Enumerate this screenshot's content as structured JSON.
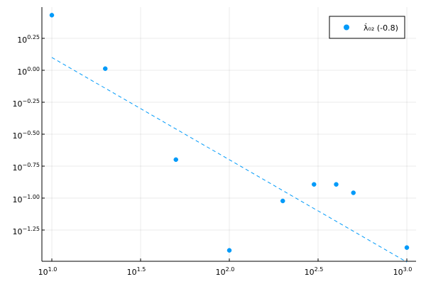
{
  "chart_data": {
    "type": "scatter",
    "xscale": "log10",
    "yscale": "log10",
    "xlim": [
      1,
      1000
    ],
    "ylim": [
      0.037,
      3.1
    ],
    "grid": true,
    "legend_position": "top-right",
    "x_ticks": [
      {
        "value": 10,
        "base": "10",
        "exp": "1.0"
      },
      {
        "value": 31.62,
        "base": "10",
        "exp": "1.5"
      },
      {
        "value": 100,
        "base": "10",
        "exp": "2.0"
      },
      {
        "value": 316.2,
        "base": "10",
        "exp": "2.5"
      },
      {
        "value": 1000,
        "base": "10",
        "exp": "3.0"
      }
    ],
    "y_ticks": [
      {
        "value": 1.778,
        "base": "10",
        "exp": "0.25"
      },
      {
        "value": 1.0,
        "base": "10",
        "exp": "0.00"
      },
      {
        "value": 0.5623,
        "base": "10",
        "exp": "−0.25"
      },
      {
        "value": 0.3162,
        "base": "10",
        "exp": "−0.50"
      },
      {
        "value": 0.1778,
        "base": "10",
        "exp": "−0.75"
      },
      {
        "value": 0.1,
        "base": "10",
        "exp": "−1.00"
      },
      {
        "value": 0.05623,
        "base": "10",
        "exp": "−1.25"
      }
    ],
    "series": [
      {
        "name": "λ̇₀₂ (-0.8)",
        "kind": "scatter",
        "color": "#009AF9",
        "x": [
          10,
          20,
          50,
          100,
          200,
          300,
          400,
          500,
          1000
        ],
        "y": [
          2.7,
          1.03,
          0.2,
          0.039,
          0.095,
          0.128,
          0.128,
          0.11,
          0.041
        ]
      },
      {
        "kind": "fit-line",
        "color": "#009AF9",
        "dashed": true,
        "x": [
          10,
          1000
        ],
        "y": [
          1.26,
          0.0316
        ]
      }
    ]
  }
}
